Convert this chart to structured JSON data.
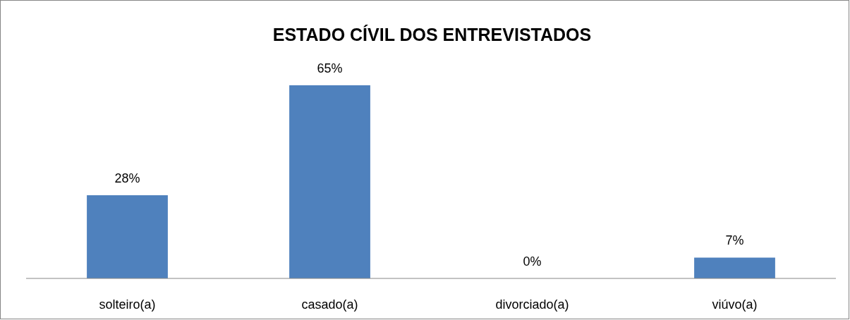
{
  "chart_data": {
    "type": "bar",
    "title": "ESTADO CÍVIL DOS ENTREVISTADOS",
    "categories": [
      "solteiro(a)",
      "casado(a)",
      "divorciado(a)",
      "viúvo(a)"
    ],
    "values": [
      28,
      65,
      0,
      7
    ],
    "value_labels": [
      "28%",
      "65%",
      "0%",
      "7%"
    ],
    "color": "#4f81bd"
  }
}
